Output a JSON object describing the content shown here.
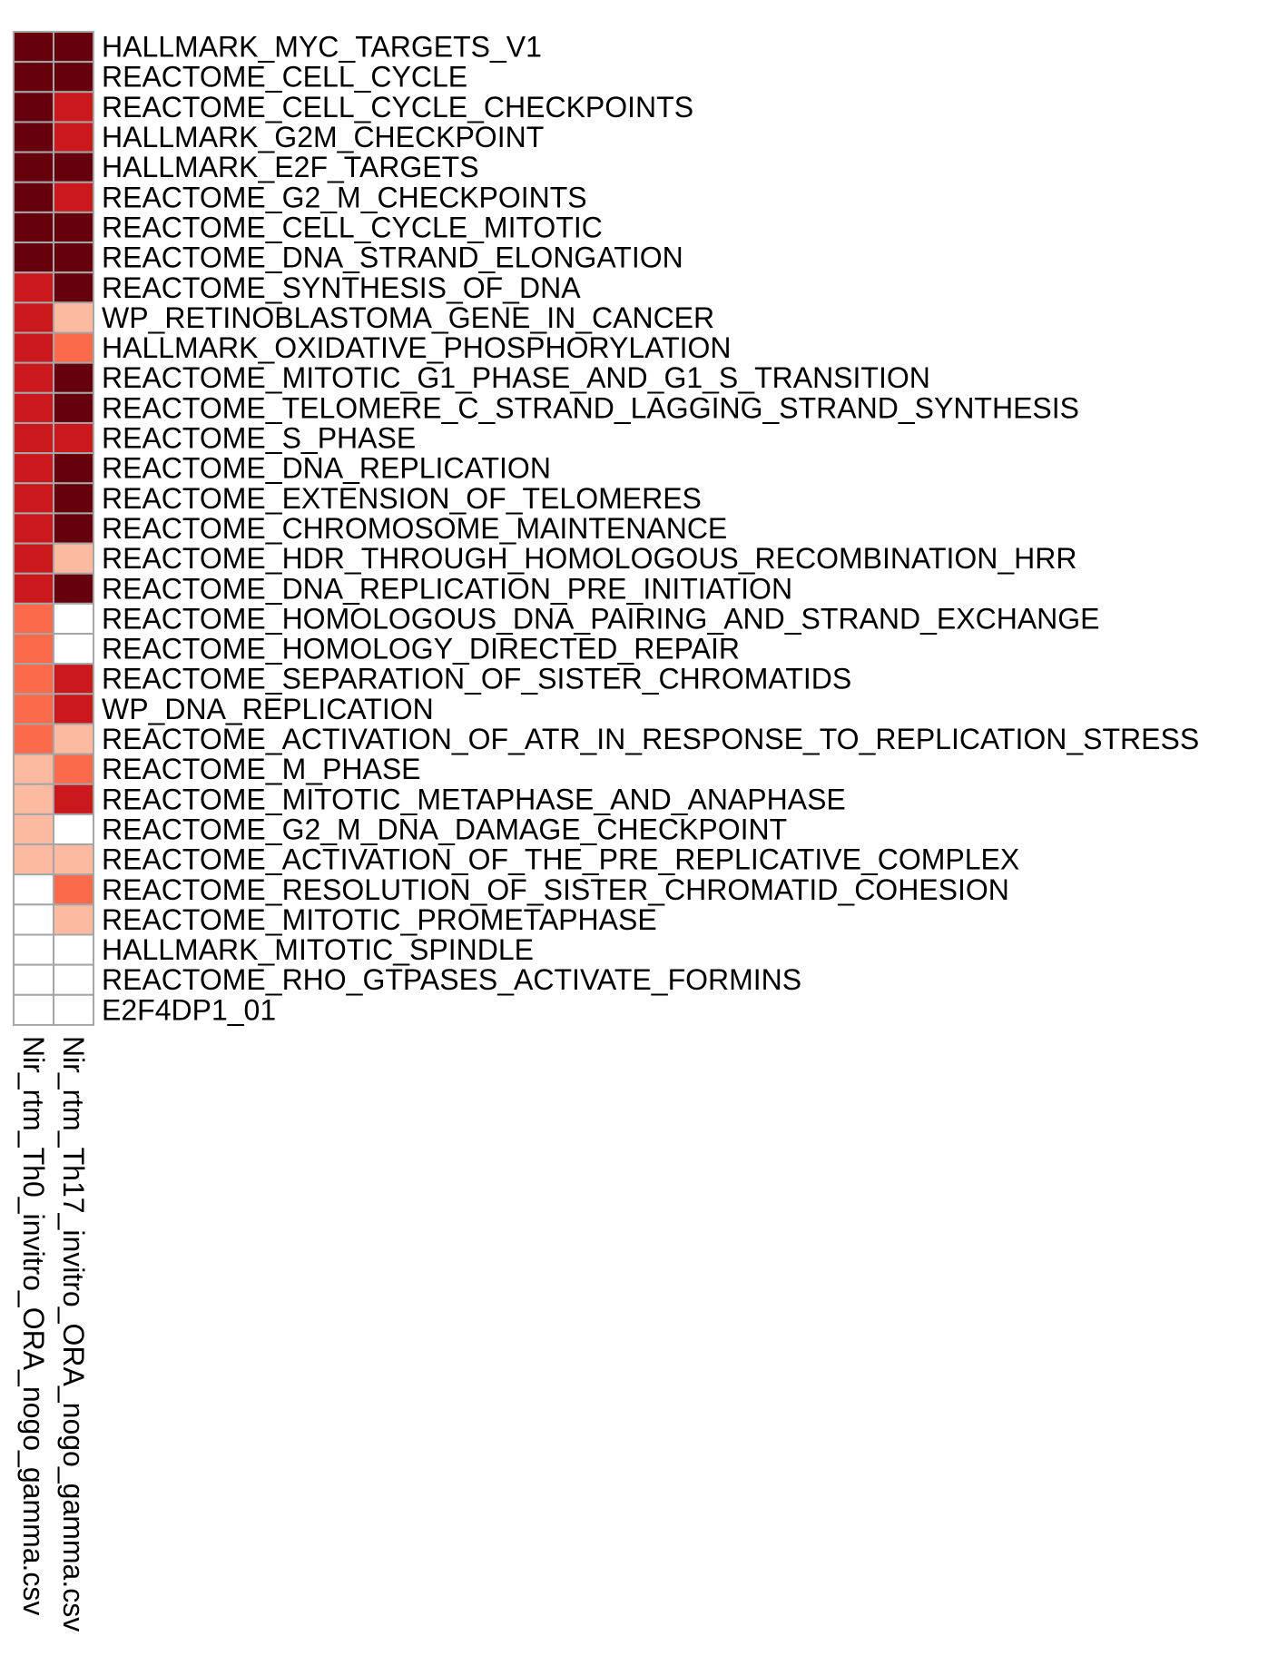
{
  "chart_data": {
    "type": "heatmap",
    "title": "",
    "xlabel": "",
    "ylabel": "",
    "legend": "none",
    "columns": [
      "Nir_rtm_Th0_invitro_ORA_nogo_gamma.csv",
      "Nir_rtm_Th17_invitro_ORA_nogo_gamma.csv"
    ],
    "rows": [
      "HALLMARK_MYC_TARGETS_V1",
      "REACTOME_CELL_CYCLE",
      "REACTOME_CELL_CYCLE_CHECKPOINTS",
      "HALLMARK_G2M_CHECKPOINT",
      "HALLMARK_E2F_TARGETS",
      "REACTOME_G2_M_CHECKPOINTS",
      "REACTOME_CELL_CYCLE_MITOTIC",
      "REACTOME_DNA_STRAND_ELONGATION",
      "REACTOME_SYNTHESIS_OF_DNA",
      "WP_RETINOBLASTOMA_GENE_IN_CANCER",
      "HALLMARK_OXIDATIVE_PHOSPHORYLATION",
      "REACTOME_MITOTIC_G1_PHASE_AND_G1_S_TRANSITION",
      "REACTOME_TELOMERE_C_STRAND_LAGGING_STRAND_SYNTHESIS",
      "REACTOME_S_PHASE",
      "REACTOME_DNA_REPLICATION",
      "REACTOME_EXTENSION_OF_TELOMERES",
      "REACTOME_CHROMOSOME_MAINTENANCE",
      "REACTOME_HDR_THROUGH_HOMOLOGOUS_RECOMBINATION_HRR",
      "REACTOME_DNA_REPLICATION_PRE_INITIATION",
      "REACTOME_HOMOLOGOUS_DNA_PAIRING_AND_STRAND_EXCHANGE",
      "REACTOME_HOMOLOGY_DIRECTED_REPAIR",
      "REACTOME_SEPARATION_OF_SISTER_CHROMATIDS",
      "WP_DNA_REPLICATION",
      "REACTOME_ACTIVATION_OF_ATR_IN_RESPONSE_TO_REPLICATION_STRESS",
      "REACTOME_M_PHASE",
      "REACTOME_MITOTIC_METAPHASE_AND_ANAPHASE",
      "REACTOME_G2_M_DNA_DAMAGE_CHECKPOINT",
      "REACTOME_ACTIVATION_OF_THE_PRE_REPLICATIVE_COMPLEX",
      "REACTOME_RESOLUTION_OF_SISTER_CHROMATID_COHESION",
      "REACTOME_MITOTIC_PROMETAPHASE",
      "HALLMARK_MITOTIC_SPINDLE",
      "REACTOME_RHO_GTPASES_ACTIVATE_FORMINS",
      "E2F4DP1_01"
    ],
    "levels": 5,
    "values": [
      [
        4,
        4
      ],
      [
        4,
        4
      ],
      [
        4,
        3
      ],
      [
        4,
        3
      ],
      [
        4,
        4
      ],
      [
        4,
        3
      ],
      [
        4,
        4
      ],
      [
        4,
        4
      ],
      [
        3,
        4
      ],
      [
        3,
        1
      ],
      [
        3,
        2
      ],
      [
        3,
        4
      ],
      [
        3,
        4
      ],
      [
        3,
        3
      ],
      [
        3,
        4
      ],
      [
        3,
        4
      ],
      [
        3,
        4
      ],
      [
        3,
        1
      ],
      [
        3,
        4
      ],
      [
        2,
        0
      ],
      [
        2,
        0
      ],
      [
        2,
        3
      ],
      [
        2,
        3
      ],
      [
        2,
        1
      ],
      [
        1,
        2
      ],
      [
        1,
        3
      ],
      [
        1,
        0
      ],
      [
        1,
        1
      ],
      [
        0,
        2
      ],
      [
        0,
        1
      ],
      [
        0,
        0
      ],
      [
        0,
        0
      ],
      [
        0,
        0
      ]
    ],
    "colors": [
      "#ffffff",
      "#fcbba1",
      "#fb6a4a",
      "#cb181d",
      "#67000d"
    ],
    "grid": true
  }
}
